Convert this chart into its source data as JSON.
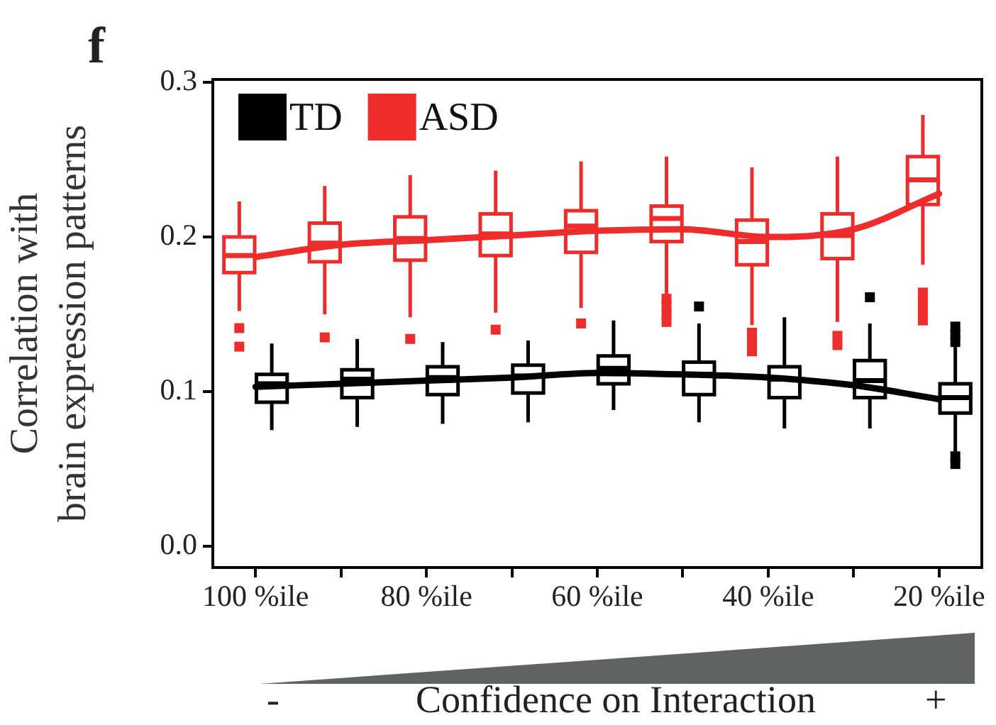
{
  "chart_data": {
    "type": "box",
    "ylabel": "Correlation with\nbrain expression patterns",
    "xlabel": "Confidence on Interaction",
    "annotations": [
      "f",
      "-",
      "+"
    ],
    "categories": [
      "100 %ile",
      null,
      "80 %ile",
      null,
      "60 %ile",
      null,
      "40 %ile",
      null,
      "20 %ile"
    ],
    "ylim": [
      -0.014,
      0.302
    ],
    "yticks": [
      {
        "value": 0,
        "label": "0.0"
      },
      {
        "value": 0.1,
        "label": "0.1"
      },
      {
        "value": 0.2,
        "label": "0.2"
      },
      {
        "value": 0.3,
        "label": "0.3"
      }
    ],
    "grid": false,
    "legend": "top left",
    "marker": "none",
    "line_style": "solid",
    "series": [
      {
        "name": "ASD",
        "color": "#ee2c2c",
        "boxes": [
          {
            "low": 0.152,
            "q1": 0.177,
            "median": 0.188,
            "q3": 0.2,
            "high": 0.223,
            "outliers": [
              0.141,
              0.129
            ]
          },
          {
            "low": 0.15,
            "q1": 0.184,
            "median": 0.196,
            "q3": 0.209,
            "high": 0.233,
            "outliers": [
              0.135
            ]
          },
          {
            "low": 0.148,
            "q1": 0.185,
            "median": 0.199,
            "q3": 0.213,
            "high": 0.24,
            "outliers": [
              0.134
            ]
          },
          {
            "low": 0.151,
            "q1": 0.188,
            "median": 0.202,
            "q3": 0.215,
            "high": 0.243,
            "outliers": [
              0.14
            ]
          },
          {
            "low": 0.154,
            "q1": 0.19,
            "median": 0.207,
            "q3": 0.217,
            "high": 0.249,
            "outliers": [
              0.144
            ]
          },
          {
            "low": 0.162,
            "q1": 0.197,
            "median": 0.212,
            "q3": 0.22,
            "high": 0.252,
            "outliers": [
              0.145,
              0.15,
              0.155,
              0.16
            ]
          },
          {
            "low": 0.143,
            "q1": 0.182,
            "median": 0.197,
            "q3": 0.211,
            "high": 0.245,
            "outliers": [
              0.126,
              0.132,
              0.138
            ]
          },
          {
            "low": 0.145,
            "q1": 0.186,
            "median": 0.201,
            "q3": 0.215,
            "high": 0.252,
            "outliers": [
              0.13,
              0.136
            ]
          },
          {
            "low": 0.182,
            "q1": 0.221,
            "median": 0.237,
            "q3": 0.252,
            "high": 0.279,
            "outliers": [
              0.146,
              0.152,
              0.158,
              0.164
            ]
          }
        ]
      },
      {
        "name": "TD",
        "color": "#000000",
        "boxes": [
          {
            "low": 0.075,
            "q1": 0.093,
            "median": 0.105,
            "q3": 0.111,
            "high": 0.131
          },
          {
            "low": 0.077,
            "q1": 0.096,
            "median": 0.108,
            "q3": 0.114,
            "high": 0.134
          },
          {
            "low": 0.079,
            "q1": 0.098,
            "median": 0.109,
            "q3": 0.116,
            "high": 0.132
          },
          {
            "low": 0.08,
            "q1": 0.099,
            "median": 0.11,
            "q3": 0.117,
            "high": 0.133
          },
          {
            "low": 0.088,
            "q1": 0.105,
            "median": 0.115,
            "q3": 0.123,
            "high": 0.146
          },
          {
            "low": 0.08,
            "q1": 0.098,
            "median": 0.111,
            "q3": 0.119,
            "high": 0.144,
            "outliers": [
              0.155
            ]
          },
          {
            "low": 0.076,
            "q1": 0.096,
            "median": 0.108,
            "q3": 0.116,
            "high": 0.148
          },
          {
            "low": 0.076,
            "q1": 0.096,
            "median": 0.107,
            "q3": 0.12,
            "high": 0.144,
            "outliers": [
              0.161
            ]
          },
          {
            "low": 0.061,
            "q1": 0.086,
            "median": 0.096,
            "q3": 0.105,
            "high": 0.129,
            "outliers": [
              0.132,
              0.137,
              0.142,
              0.053,
              0.058
            ]
          }
        ]
      },
      {
        "type": "line",
        "color": "#ee2c2c",
        "values": [
          0.187,
          0.195,
          0.198,
          0.201,
          0.204,
          0.205,
          0.2,
          0.205,
          0.228
        ]
      },
      {
        "type": "line",
        "color": "#000000",
        "values": [
          0.103,
          0.105,
          0.107,
          0.109,
          0.112,
          0.111,
          0.109,
          0.104,
          0.095
        ]
      }
    ]
  }
}
